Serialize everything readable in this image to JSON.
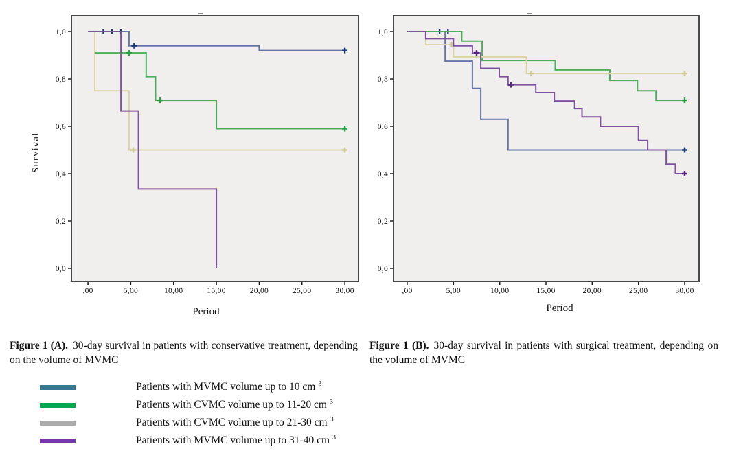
{
  "captions": {
    "a": {
      "label": "Figure 1 (A).",
      "text": "30-day survival in patients with conservative treatment, depending on the volume of MVMC"
    },
    "b": {
      "label": "Figure 1 (B).",
      "text": "30-day survival in patients with surgical treatment, depending on the volume of MVMC"
    }
  },
  "legend": {
    "items": [
      {
        "color": "#35788f",
        "label": "Patients with MVMC volume up to 10 cm",
        "sup": "3"
      },
      {
        "color": "#0aa64f",
        "label": "Patients with CVMC volume up to 11-20 cm",
        "sup": "3"
      },
      {
        "color": "#ababab",
        "label": "Patients with CVMC volume up to 21-30 cm",
        "sup": "3"
      },
      {
        "color": "#7a35ad",
        "label": "Patients with MVMC volume up to 31-40 cm",
        "sup": "3"
      }
    ]
  },
  "chart_data": [
    {
      "type": "step",
      "title": "",
      "xlabel": "Period",
      "ylabel": "Survival",
      "xlim": [
        -1.93,
        31.6
      ],
      "ylim": [
        -0.055,
        1.0667
      ],
      "x_ticks": {
        "labels": [
          ",00",
          "5,00",
          "10,00",
          "15,00",
          "20,00",
          "25,00",
          "30,00"
        ],
        "values": [
          0,
          5,
          10,
          15,
          20,
          25,
          30
        ]
      },
      "y_ticks": {
        "labels": [
          "1,0",
          "0,8",
          "0,6",
          "0,4",
          "0,2",
          "0,0"
        ],
        "values": [
          1.0,
          0.8,
          0.6,
          0.4,
          0.2,
          0.0
        ]
      },
      "series": [
        {
          "name": "MVMC volume up to 10 cm3",
          "color": "#6474a6",
          "marker_color": "#1b3a73",
          "points": [
            [
              0,
              1
            ],
            [
              4.8,
              1
            ],
            [
              4.8,
              0.94
            ],
            [
              20,
              0.94
            ],
            [
              20,
              0.92
            ],
            [
              30,
              0.92
            ]
          ],
          "censor_plus": [
            [
              5.4,
              0.94
            ],
            [
              30,
              0.92
            ]
          ],
          "censor_tick": [
            [
              1.8,
              1
            ],
            [
              2.8,
              1
            ],
            [
              3.85,
              1
            ]
          ]
        },
        {
          "name": "CVMC volume up to 11-20 cm3",
          "color": "#4fae5c",
          "marker_color": "#2a9e49",
          "points": [
            [
              0,
              1
            ],
            [
              0.8,
              1
            ],
            [
              0.8,
              0.91
            ],
            [
              6.8,
              0.91
            ],
            [
              6.8,
              0.81
            ],
            [
              7.9,
              0.81
            ],
            [
              7.9,
              0.71
            ],
            [
              15,
              0.71
            ],
            [
              15,
              0.59
            ],
            [
              30,
              0.59
            ]
          ],
          "censor_plus": [
            [
              4.8,
              0.91
            ],
            [
              8.4,
              0.71
            ],
            [
              30,
              0.59
            ]
          ],
          "censor_tick": []
        },
        {
          "name": "CVMC volume up to 21-30 cm3",
          "color": "#d9d5a5",
          "marker_color": "#cdc88f",
          "points": [
            [
              0,
              1
            ],
            [
              0.8,
              1
            ],
            [
              0.8,
              0.75
            ],
            [
              4.8,
              0.75
            ],
            [
              4.8,
              0.5
            ],
            [
              30,
              0.5
            ]
          ],
          "censor_plus": [
            [
              5.3,
              0.5
            ],
            [
              30,
              0.5
            ]
          ],
          "censor_tick": []
        },
        {
          "name": "MVMC volume up to 31-40 cm3",
          "color": "#7f529e",
          "marker_color": "#532577",
          "points": [
            [
              0,
              1
            ],
            [
              3.85,
              1
            ],
            [
              3.85,
              0.665
            ],
            [
              5.9,
              0.665
            ],
            [
              5.9,
              0.335
            ],
            [
              15,
              0.335
            ],
            [
              15,
              0
            ]
          ],
          "censor_plus": [],
          "censor_tick": []
        }
      ]
    },
    {
      "type": "step",
      "title": "",
      "xlabel": "Period",
      "ylabel": "",
      "xlim": [
        -1.485,
        31.56
      ],
      "ylim": [
        -0.055,
        1.0667
      ],
      "x_ticks": {
        "labels": [
          ",00",
          "5,00",
          "10,00",
          "15,00",
          "20,00",
          "25,00",
          "30,00"
        ],
        "values": [
          0,
          5,
          10,
          15,
          20,
          25,
          30
        ]
      },
      "y_ticks": {
        "labels": [
          "1,0",
          "0,8",
          "0,6",
          "0,4",
          "0,2",
          "0,0"
        ],
        "values": [
          1.0,
          0.8,
          0.6,
          0.4,
          0.2,
          0.0
        ]
      },
      "series": [
        {
          "name": "MVMC volume up to 10 cm3",
          "color": "#6474a6",
          "marker_color": "#1b3a73",
          "points": [
            [
              0,
              1
            ],
            [
              4.1,
              1
            ],
            [
              4.1,
              0.875
            ],
            [
              7.05,
              0.875
            ],
            [
              7.05,
              0.76
            ],
            [
              7.95,
              0.76
            ],
            [
              7.95,
              0.63
            ],
            [
              10.9,
              0.63
            ],
            [
              10.9,
              0.5
            ],
            [
              30,
              0.5
            ]
          ],
          "censor_plus": [
            [
              30,
              0.5
            ]
          ],
          "censor_tick": [
            [
              3.5,
              1
            ],
            [
              4.4,
              1
            ]
          ]
        },
        {
          "name": "CVMC volume up to 11-20 cm3",
          "color": "#4fae5c",
          "marker_color": "#2a9e49",
          "points": [
            [
              0,
              1
            ],
            [
              5.9,
              1
            ],
            [
              5.9,
              0.96
            ],
            [
              8.1,
              0.96
            ],
            [
              8.1,
              0.878
            ],
            [
              16,
              0.878
            ],
            [
              16,
              0.838
            ],
            [
              21.9,
              0.838
            ],
            [
              21.9,
              0.794
            ],
            [
              24.9,
              0.794
            ],
            [
              24.9,
              0.75
            ],
            [
              26.9,
              0.75
            ],
            [
              26.9,
              0.71
            ],
            [
              30,
              0.71
            ]
          ],
          "censor_plus": [
            [
              30,
              0.71
            ]
          ],
          "censor_tick": []
        },
        {
          "name": "CVMC volume up to 21-30 cm3",
          "color": "#d9d5a5",
          "marker_color": "#cdc88f",
          "points": [
            [
              0,
              1
            ],
            [
              2,
              1
            ],
            [
              2,
              0.945
            ],
            [
              5,
              0.945
            ],
            [
              5,
              0.893
            ],
            [
              12.9,
              0.893
            ],
            [
              12.9,
              0.823
            ],
            [
              30,
              0.823
            ]
          ],
          "censor_plus": [
            [
              4.8,
              0.945
            ],
            [
              13.4,
              0.823
            ],
            [
              30,
              0.823
            ]
          ],
          "censor_tick": []
        },
        {
          "name": "MVMC volume up to 31-40 cm3",
          "color": "#7f529e",
          "marker_color": "#532577",
          "points": [
            [
              0,
              1
            ],
            [
              2,
              1
            ],
            [
              2,
              0.97
            ],
            [
              5,
              0.97
            ],
            [
              5,
              0.94
            ],
            [
              7.05,
              0.94
            ],
            [
              7.05,
              0.91
            ],
            [
              7.95,
              0.91
            ],
            [
              7.95,
              0.845
            ],
            [
              9.95,
              0.845
            ],
            [
              9.95,
              0.81
            ],
            [
              10.9,
              0.81
            ],
            [
              10.9,
              0.775
            ],
            [
              13.9,
              0.775
            ],
            [
              13.9,
              0.742
            ],
            [
              15.9,
              0.742
            ],
            [
              15.9,
              0.707
            ],
            [
              18.1,
              0.707
            ],
            [
              18.1,
              0.675
            ],
            [
              18.9,
              0.675
            ],
            [
              18.9,
              0.64
            ],
            [
              20.9,
              0.64
            ],
            [
              20.9,
              0.6
            ],
            [
              25,
              0.6
            ],
            [
              25,
              0.54
            ],
            [
              26,
              0.54
            ],
            [
              26,
              0.5
            ],
            [
              28,
              0.5
            ],
            [
              28,
              0.44
            ],
            [
              29,
              0.44
            ],
            [
              29,
              0.4
            ],
            [
              30,
              0.4
            ]
          ],
          "censor_plus": [
            [
              7.5,
              0.91
            ],
            [
              11.2,
              0.775
            ],
            [
              30,
              0.4
            ]
          ],
          "censor_tick": []
        }
      ]
    }
  ]
}
